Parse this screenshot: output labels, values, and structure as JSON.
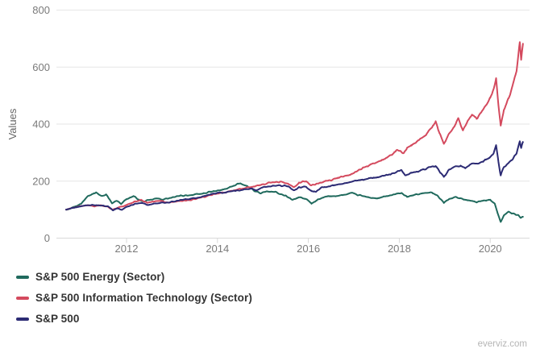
{
  "watermark": "everviz.com",
  "colors": {
    "background": "#ffffff",
    "grid": "#e6e6e6",
    "axis_line": "#d9d9d9",
    "tick_mark": "#d9d9d9",
    "tick_label": "#7a7a7a",
    "axis_title": "#666666",
    "legend_text": "#333333",
    "watermark_text": "#b5b5b5"
  },
  "chart_data": {
    "type": "line",
    "title": "",
    "xlabel": "",
    "ylabel": "Values",
    "x_ticks": [
      2012,
      2014,
      2016,
      2018,
      2020
    ],
    "y_ticks": [
      0,
      200,
      400,
      600,
      800
    ],
    "xlim": [
      2010.55,
      2020.9
    ],
    "ylim": [
      0,
      800
    ],
    "grid": true,
    "legend_position": "bottom-left",
    "series": [
      {
        "name": "S&P 500 Energy (Sector)",
        "color": "#206a5d",
        "points": [
          [
            2010.67,
            100
          ],
          [
            2010.8,
            107
          ],
          [
            2011.0,
            120
          ],
          [
            2011.15,
            150
          ],
          [
            2011.33,
            160
          ],
          [
            2011.45,
            147
          ],
          [
            2011.55,
            153
          ],
          [
            2011.68,
            123
          ],
          [
            2011.78,
            132
          ],
          [
            2011.88,
            121
          ],
          [
            2012.0,
            137
          ],
          [
            2012.15,
            147
          ],
          [
            2012.35,
            128
          ],
          [
            2012.5,
            133
          ],
          [
            2012.65,
            139
          ],
          [
            2012.8,
            136
          ],
          [
            2013.0,
            142
          ],
          [
            2013.2,
            149
          ],
          [
            2013.4,
            151
          ],
          [
            2013.6,
            154
          ],
          [
            2013.8,
            161
          ],
          [
            2014.0,
            166
          ],
          [
            2014.2,
            173
          ],
          [
            2014.45,
            191
          ],
          [
            2014.6,
            186
          ],
          [
            2014.8,
            168
          ],
          [
            2014.95,
            157
          ],
          [
            2015.1,
            164
          ],
          [
            2015.3,
            160
          ],
          [
            2015.5,
            149
          ],
          [
            2015.65,
            134
          ],
          [
            2015.8,
            144
          ],
          [
            2015.95,
            137
          ],
          [
            2016.07,
            121
          ],
          [
            2016.2,
            134
          ],
          [
            2016.4,
            146
          ],
          [
            2016.6,
            148
          ],
          [
            2016.8,
            152
          ],
          [
            2016.95,
            158
          ],
          [
            2017.1,
            151
          ],
          [
            2017.3,
            144
          ],
          [
            2017.5,
            139
          ],
          [
            2017.7,
            146
          ],
          [
            2017.9,
            153
          ],
          [
            2018.05,
            159
          ],
          [
            2018.17,
            144
          ],
          [
            2018.3,
            150
          ],
          [
            2018.5,
            157
          ],
          [
            2018.7,
            161
          ],
          [
            2018.85,
            147
          ],
          [
            2018.98,
            124
          ],
          [
            2019.1,
            139
          ],
          [
            2019.25,
            144
          ],
          [
            2019.4,
            137
          ],
          [
            2019.55,
            131
          ],
          [
            2019.7,
            127
          ],
          [
            2019.85,
            132
          ],
          [
            2020.0,
            134
          ],
          [
            2020.1,
            121
          ],
          [
            2020.16,
            88
          ],
          [
            2020.23,
            57
          ],
          [
            2020.3,
            79
          ],
          [
            2020.4,
            94
          ],
          [
            2020.47,
            87
          ],
          [
            2020.55,
            84
          ],
          [
            2020.62,
            80
          ],
          [
            2020.67,
            70
          ],
          [
            2020.72,
            75
          ]
        ]
      },
      {
        "name": "S&P 500 Information Technology (Sector)",
        "color": "#d44a5e",
        "points": [
          [
            2010.67,
            100
          ],
          [
            2010.8,
            106
          ],
          [
            2011.0,
            113
          ],
          [
            2011.15,
            116
          ],
          [
            2011.3,
            112
          ],
          [
            2011.45,
            116
          ],
          [
            2011.6,
            108
          ],
          [
            2011.7,
            100
          ],
          [
            2011.85,
            109
          ],
          [
            2012.0,
            116
          ],
          [
            2012.2,
            129
          ],
          [
            2012.32,
            133
          ],
          [
            2012.45,
            124
          ],
          [
            2012.6,
            128
          ],
          [
            2012.75,
            132
          ],
          [
            2012.9,
            124
          ],
          [
            2013.0,
            127
          ],
          [
            2013.2,
            130
          ],
          [
            2013.4,
            134
          ],
          [
            2013.6,
            141
          ],
          [
            2013.8,
            149
          ],
          [
            2014.0,
            157
          ],
          [
            2014.2,
            161
          ],
          [
            2014.4,
            169
          ],
          [
            2014.6,
            176
          ],
          [
            2014.8,
            181
          ],
          [
            2015.0,
            189
          ],
          [
            2015.2,
            196
          ],
          [
            2015.4,
            198
          ],
          [
            2015.55,
            192
          ],
          [
            2015.68,
            177
          ],
          [
            2015.8,
            194
          ],
          [
            2015.95,
            200
          ],
          [
            2016.07,
            185
          ],
          [
            2016.17,
            190
          ],
          [
            2016.3,
            196
          ],
          [
            2016.5,
            204
          ],
          [
            2016.7,
            214
          ],
          [
            2016.85,
            218
          ],
          [
            2017.0,
            229
          ],
          [
            2017.2,
            247
          ],
          [
            2017.4,
            261
          ],
          [
            2017.6,
            272
          ],
          [
            2017.8,
            288
          ],
          [
            2017.95,
            309
          ],
          [
            2018.1,
            299
          ],
          [
            2018.17,
            318
          ],
          [
            2018.27,
            324
          ],
          [
            2018.4,
            339
          ],
          [
            2018.55,
            356
          ],
          [
            2018.7,
            386
          ],
          [
            2018.8,
            407
          ],
          [
            2018.88,
            372
          ],
          [
            2018.98,
            330
          ],
          [
            2019.1,
            369
          ],
          [
            2019.22,
            395
          ],
          [
            2019.3,
            420
          ],
          [
            2019.4,
            378
          ],
          [
            2019.5,
            410
          ],
          [
            2019.6,
            432
          ],
          [
            2019.7,
            420
          ],
          [
            2019.8,
            445
          ],
          [
            2019.9,
            465
          ],
          [
            2020.0,
            492
          ],
          [
            2020.08,
            528
          ],
          [
            2020.13,
            563
          ],
          [
            2020.18,
            468
          ],
          [
            2020.23,
            394
          ],
          [
            2020.3,
            448
          ],
          [
            2020.4,
            489
          ],
          [
            2020.5,
            538
          ],
          [
            2020.58,
            588
          ],
          [
            2020.65,
            688
          ],
          [
            2020.68,
            628
          ],
          [
            2020.72,
            682
          ]
        ]
      },
      {
        "name": "S&P 500",
        "color": "#2c2b74",
        "points": [
          [
            2010.67,
            100
          ],
          [
            2010.8,
            105
          ],
          [
            2011.0,
            112
          ],
          [
            2011.15,
            115
          ],
          [
            2011.3,
            116
          ],
          [
            2011.45,
            114
          ],
          [
            2011.6,
            110
          ],
          [
            2011.7,
            98
          ],
          [
            2011.8,
            105
          ],
          [
            2011.9,
            100
          ],
          [
            2012.0,
            110
          ],
          [
            2012.2,
            120
          ],
          [
            2012.35,
            123
          ],
          [
            2012.45,
            116
          ],
          [
            2012.6,
            120
          ],
          [
            2012.75,
            124
          ],
          [
            2012.9,
            123
          ],
          [
            2013.0,
            128
          ],
          [
            2013.2,
            134
          ],
          [
            2013.4,
            138
          ],
          [
            2013.6,
            143
          ],
          [
            2013.8,
            151
          ],
          [
            2014.0,
            158
          ],
          [
            2014.2,
            161
          ],
          [
            2014.4,
            166
          ],
          [
            2014.6,
            171
          ],
          [
            2014.75,
            173
          ],
          [
            2014.85,
            168
          ],
          [
            2015.0,
            178
          ],
          [
            2015.2,
            183
          ],
          [
            2015.4,
            185
          ],
          [
            2015.55,
            182
          ],
          [
            2015.68,
            168
          ],
          [
            2015.8,
            178
          ],
          [
            2015.95,
            181
          ],
          [
            2016.07,
            166
          ],
          [
            2016.17,
            163
          ],
          [
            2016.3,
            178
          ],
          [
            2016.5,
            184
          ],
          [
            2016.7,
            189
          ],
          [
            2016.85,
            193
          ],
          [
            2017.0,
            199
          ],
          [
            2017.2,
            206
          ],
          [
            2017.4,
            211
          ],
          [
            2017.6,
            216
          ],
          [
            2017.8,
            223
          ],
          [
            2017.95,
            233
          ],
          [
            2018.05,
            241
          ],
          [
            2018.13,
            222
          ],
          [
            2018.27,
            230
          ],
          [
            2018.4,
            233
          ],
          [
            2018.55,
            241
          ],
          [
            2018.7,
            251
          ],
          [
            2018.8,
            253
          ],
          [
            2018.88,
            236
          ],
          [
            2018.98,
            215
          ],
          [
            2019.1,
            241
          ],
          [
            2019.25,
            251
          ],
          [
            2019.35,
            256
          ],
          [
            2019.45,
            246
          ],
          [
            2019.55,
            258
          ],
          [
            2019.65,
            263
          ],
          [
            2019.75,
            261
          ],
          [
            2019.85,
            269
          ],
          [
            2020.0,
            284
          ],
          [
            2020.08,
            300
          ],
          [
            2020.13,
            324
          ],
          [
            2020.18,
            268
          ],
          [
            2020.23,
            221
          ],
          [
            2020.3,
            249
          ],
          [
            2020.4,
            262
          ],
          [
            2020.5,
            279
          ],
          [
            2020.58,
            296
          ],
          [
            2020.65,
            342
          ],
          [
            2020.68,
            318
          ],
          [
            2020.72,
            337
          ]
        ]
      }
    ]
  }
}
